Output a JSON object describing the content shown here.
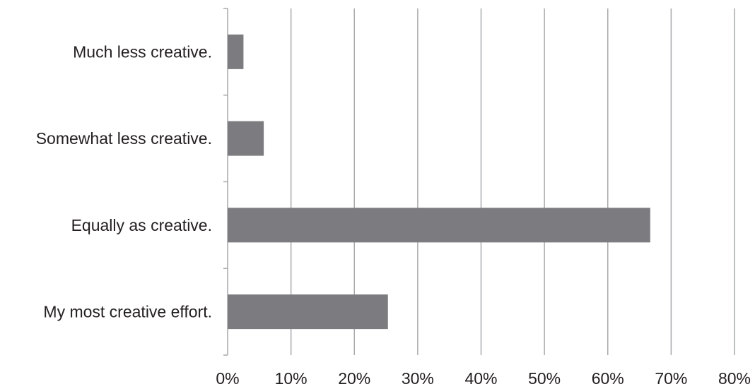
{
  "chart_data": {
    "type": "bar",
    "orientation": "horizontal",
    "categories": [
      "Much less creative.",
      "Somewhat less creative.",
      "Equally as creative.",
      "My most creative effort."
    ],
    "values": [
      2.5,
      5.7,
      66.7,
      25.3
    ],
    "value_unit": "%",
    "xlim": [
      0,
      80
    ],
    "xticks": [
      "0%",
      "10%",
      "20%",
      "30%",
      "40%",
      "50%",
      "60%",
      "70%",
      "80%"
    ],
    "title": "",
    "xlabel": "",
    "ylabel": "",
    "grid": "vertical",
    "legend": "none",
    "colors": {
      "bar": "#7c7b7f",
      "grid": "#a7a9ac",
      "text": "#231f20"
    }
  }
}
